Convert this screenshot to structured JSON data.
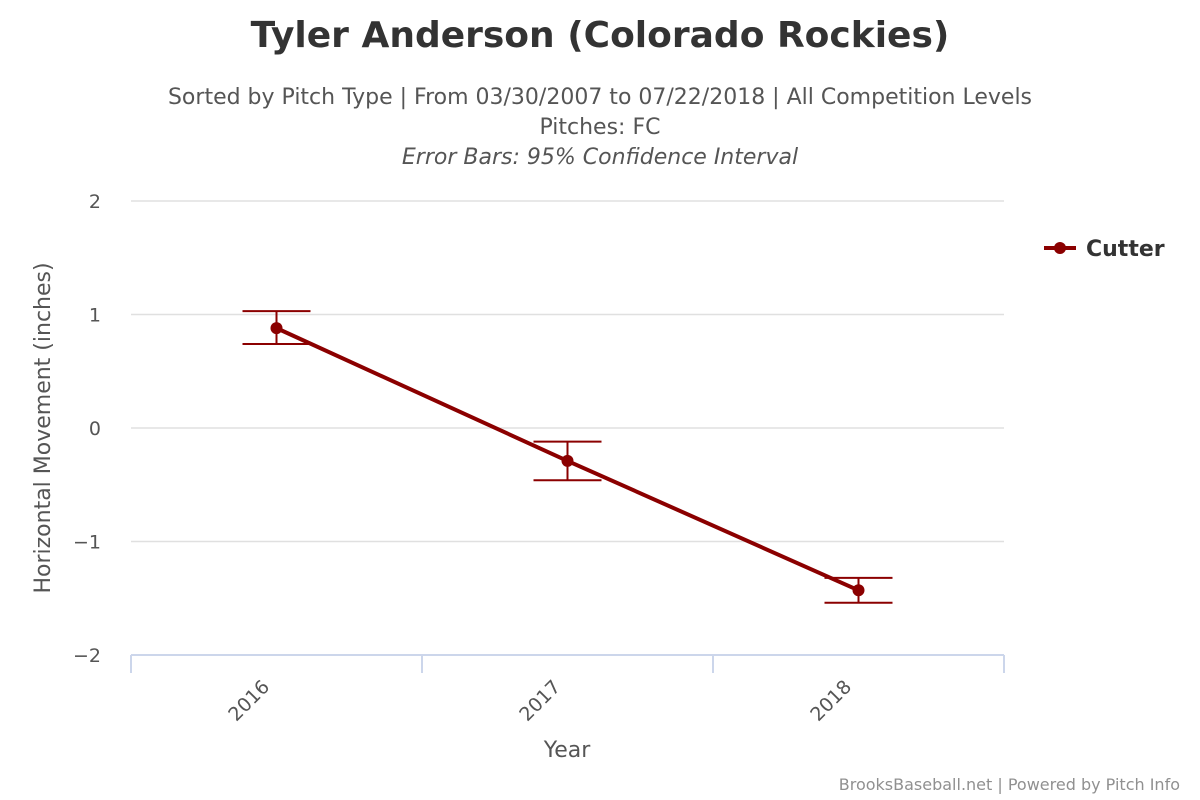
{
  "chart_data": {
    "type": "line",
    "title": "Tyler Anderson (Colorado Rockies)",
    "subtitle": "Sorted by Pitch Type | From 03/30/2007 to 07/22/2018 | All Competition Levels",
    "subtitle2": "Pitches: FC",
    "subtitle3": "Error Bars: 95% Confidence Interval",
    "xlabel": "Year",
    "ylabel": "Horizontal Movement (inches)",
    "categories": [
      "2016",
      "2017",
      "2018"
    ],
    "ylim": [
      -2,
      2
    ],
    "yticks": [
      2,
      1,
      0,
      -1,
      -2
    ],
    "ytick_labels": [
      "2",
      "1",
      "0",
      "−1",
      "−2"
    ],
    "grid": true,
    "legend_position": "top-right",
    "series": [
      {
        "name": "Cutter",
        "color": "#8B0000",
        "values": [
          0.88,
          -0.29,
          -1.43
        ],
        "error_low": [
          0.74,
          -0.46,
          -1.54
        ],
        "error_high": [
          1.03,
          -0.12,
          -1.32
        ]
      }
    ],
    "credits": "BrooksBaseball.net | Powered by Pitch Info"
  }
}
